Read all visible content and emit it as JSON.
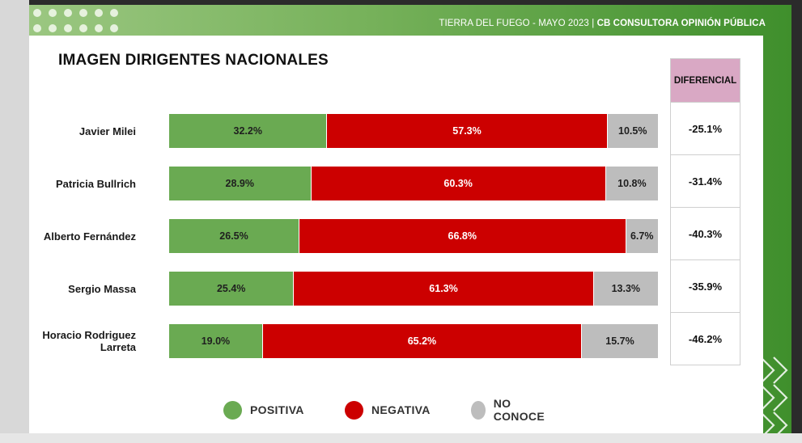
{
  "header": {
    "location_date": "TIERRA DEL FUEGO  - MAYO 2023 |",
    "brand": "CB CONSULTORA OPINIÓN PÚBLICA"
  },
  "chart_data": {
    "type": "bar",
    "orientation": "horizontal-stacked",
    "title": "IMAGEN DIRIGENTES NACIONALES",
    "categories": [
      "Javier Milei",
      "Patricia Bullrich",
      "Alberto Fernández",
      "Sergio Massa",
      "Horacio Rodriguez Larreta"
    ],
    "series": [
      {
        "name": "POSITIVA",
        "color": "#6aaa52",
        "values": [
          32.2,
          28.9,
          26.5,
          25.4,
          19.0
        ],
        "labels": [
          "32.2%",
          "28.9%",
          "26.5%",
          "25.4%",
          "19.0%"
        ]
      },
      {
        "name": "NEGATIVA",
        "color": "#cc0000",
        "values": [
          57.3,
          60.3,
          66.8,
          61.3,
          65.2
        ],
        "labels": [
          "57.3%",
          "60.3%",
          "66.8%",
          "61.3%",
          "65.2%"
        ]
      },
      {
        "name": "NO CONOCE",
        "color": "#bdbdbd",
        "values": [
          10.5,
          10.8,
          6.7,
          13.3,
          15.7
        ],
        "labels": [
          "10.5%",
          "10.8%",
          "6.7%",
          "13.3%",
          "15.7%"
        ]
      }
    ],
    "differential": {
      "header": "DIFERENCIAL",
      "values": [
        "-25.1%",
        "-31.4%",
        "-40.3%",
        "-35.9%",
        "-46.2%"
      ]
    },
    "xlim": [
      0,
      100
    ],
    "legend_position": "bottom"
  },
  "colors": {
    "header_bg": "#76b15a",
    "diff_header_bg": "#d9a8c4"
  }
}
